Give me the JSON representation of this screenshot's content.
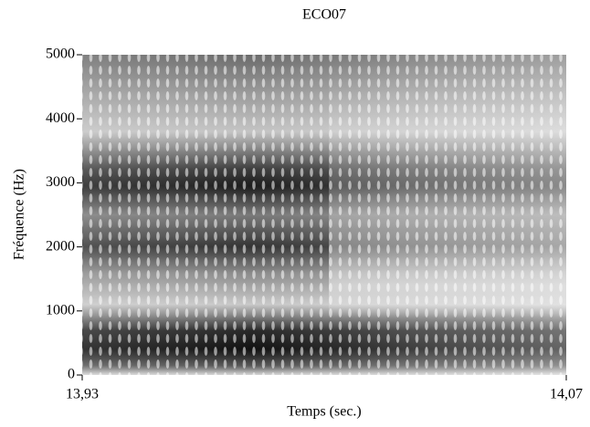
{
  "chart_data": {
    "type": "spectrogram",
    "title": "ECO07",
    "xlabel": "Temps (sec.)",
    "ylabel": "Fréquence (Hz)",
    "xlim": [
      13.93,
      14.07
    ],
    "xticks": [
      {
        "value": 13.93,
        "label": "13,93"
      },
      {
        "value": 14.07,
        "label": "14,07"
      }
    ],
    "ylim": [
      0,
      5000
    ],
    "yticks": [
      0,
      1000,
      2000,
      3000,
      4000,
      5000
    ]
  }
}
